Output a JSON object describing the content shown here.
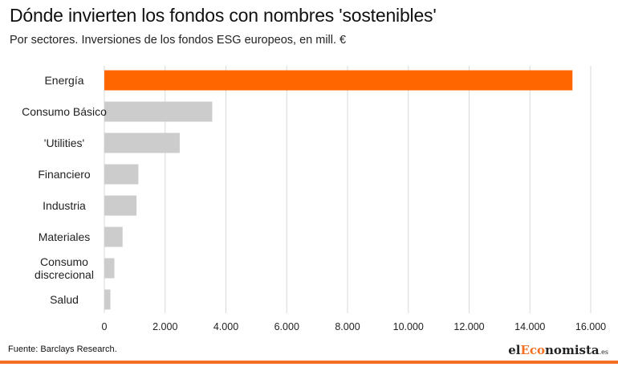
{
  "header": {
    "title": "Dónde invierten los fondos con nombres 'sostenibles'",
    "subtitle": "Por sectores. Inversiones de los fondos ESG europeos, en mill. €"
  },
  "footer": {
    "source": "Fuente: Barclays Research.",
    "logo_prefix": "el",
    "logo_accent": "Eco",
    "logo_rest": "nomista",
    "logo_suffix": ".es"
  },
  "colors": {
    "highlight": "#ff6600",
    "bar": "#cccccc",
    "grid": "#d9d9d9",
    "brand": "#f36f21"
  },
  "chart_data": {
    "type": "bar",
    "orientation": "horizontal",
    "title": "Dónde invierten los fondos con nombres 'sostenibles'",
    "subtitle": "Por sectores. Inversiones de los fondos ESG europeos, en mill. €",
    "categories": [
      [
        "Energía"
      ],
      [
        "Consumo Básico"
      ],
      [
        "'Utilities'"
      ],
      [
        "Financiero"
      ],
      [
        "Industria"
      ],
      [
        "Materiales"
      ],
      [
        "Consumo",
        "discrecional"
      ],
      [
        "Salud"
      ]
    ],
    "values": [
      15400,
      3550,
      2480,
      1120,
      1060,
      600,
      330,
      200
    ],
    "highlight_index": 0,
    "xlim": [
      0,
      16000
    ],
    "xticks": [
      0,
      2000,
      4000,
      6000,
      8000,
      10000,
      12000,
      14000,
      16000
    ],
    "xtick_labels": [
      "0",
      "2.000",
      "4.000",
      "6.000",
      "8.000",
      "10.000",
      "12.000",
      "14.000",
      "16.000"
    ],
    "grid": true,
    "legend": "none"
  }
}
